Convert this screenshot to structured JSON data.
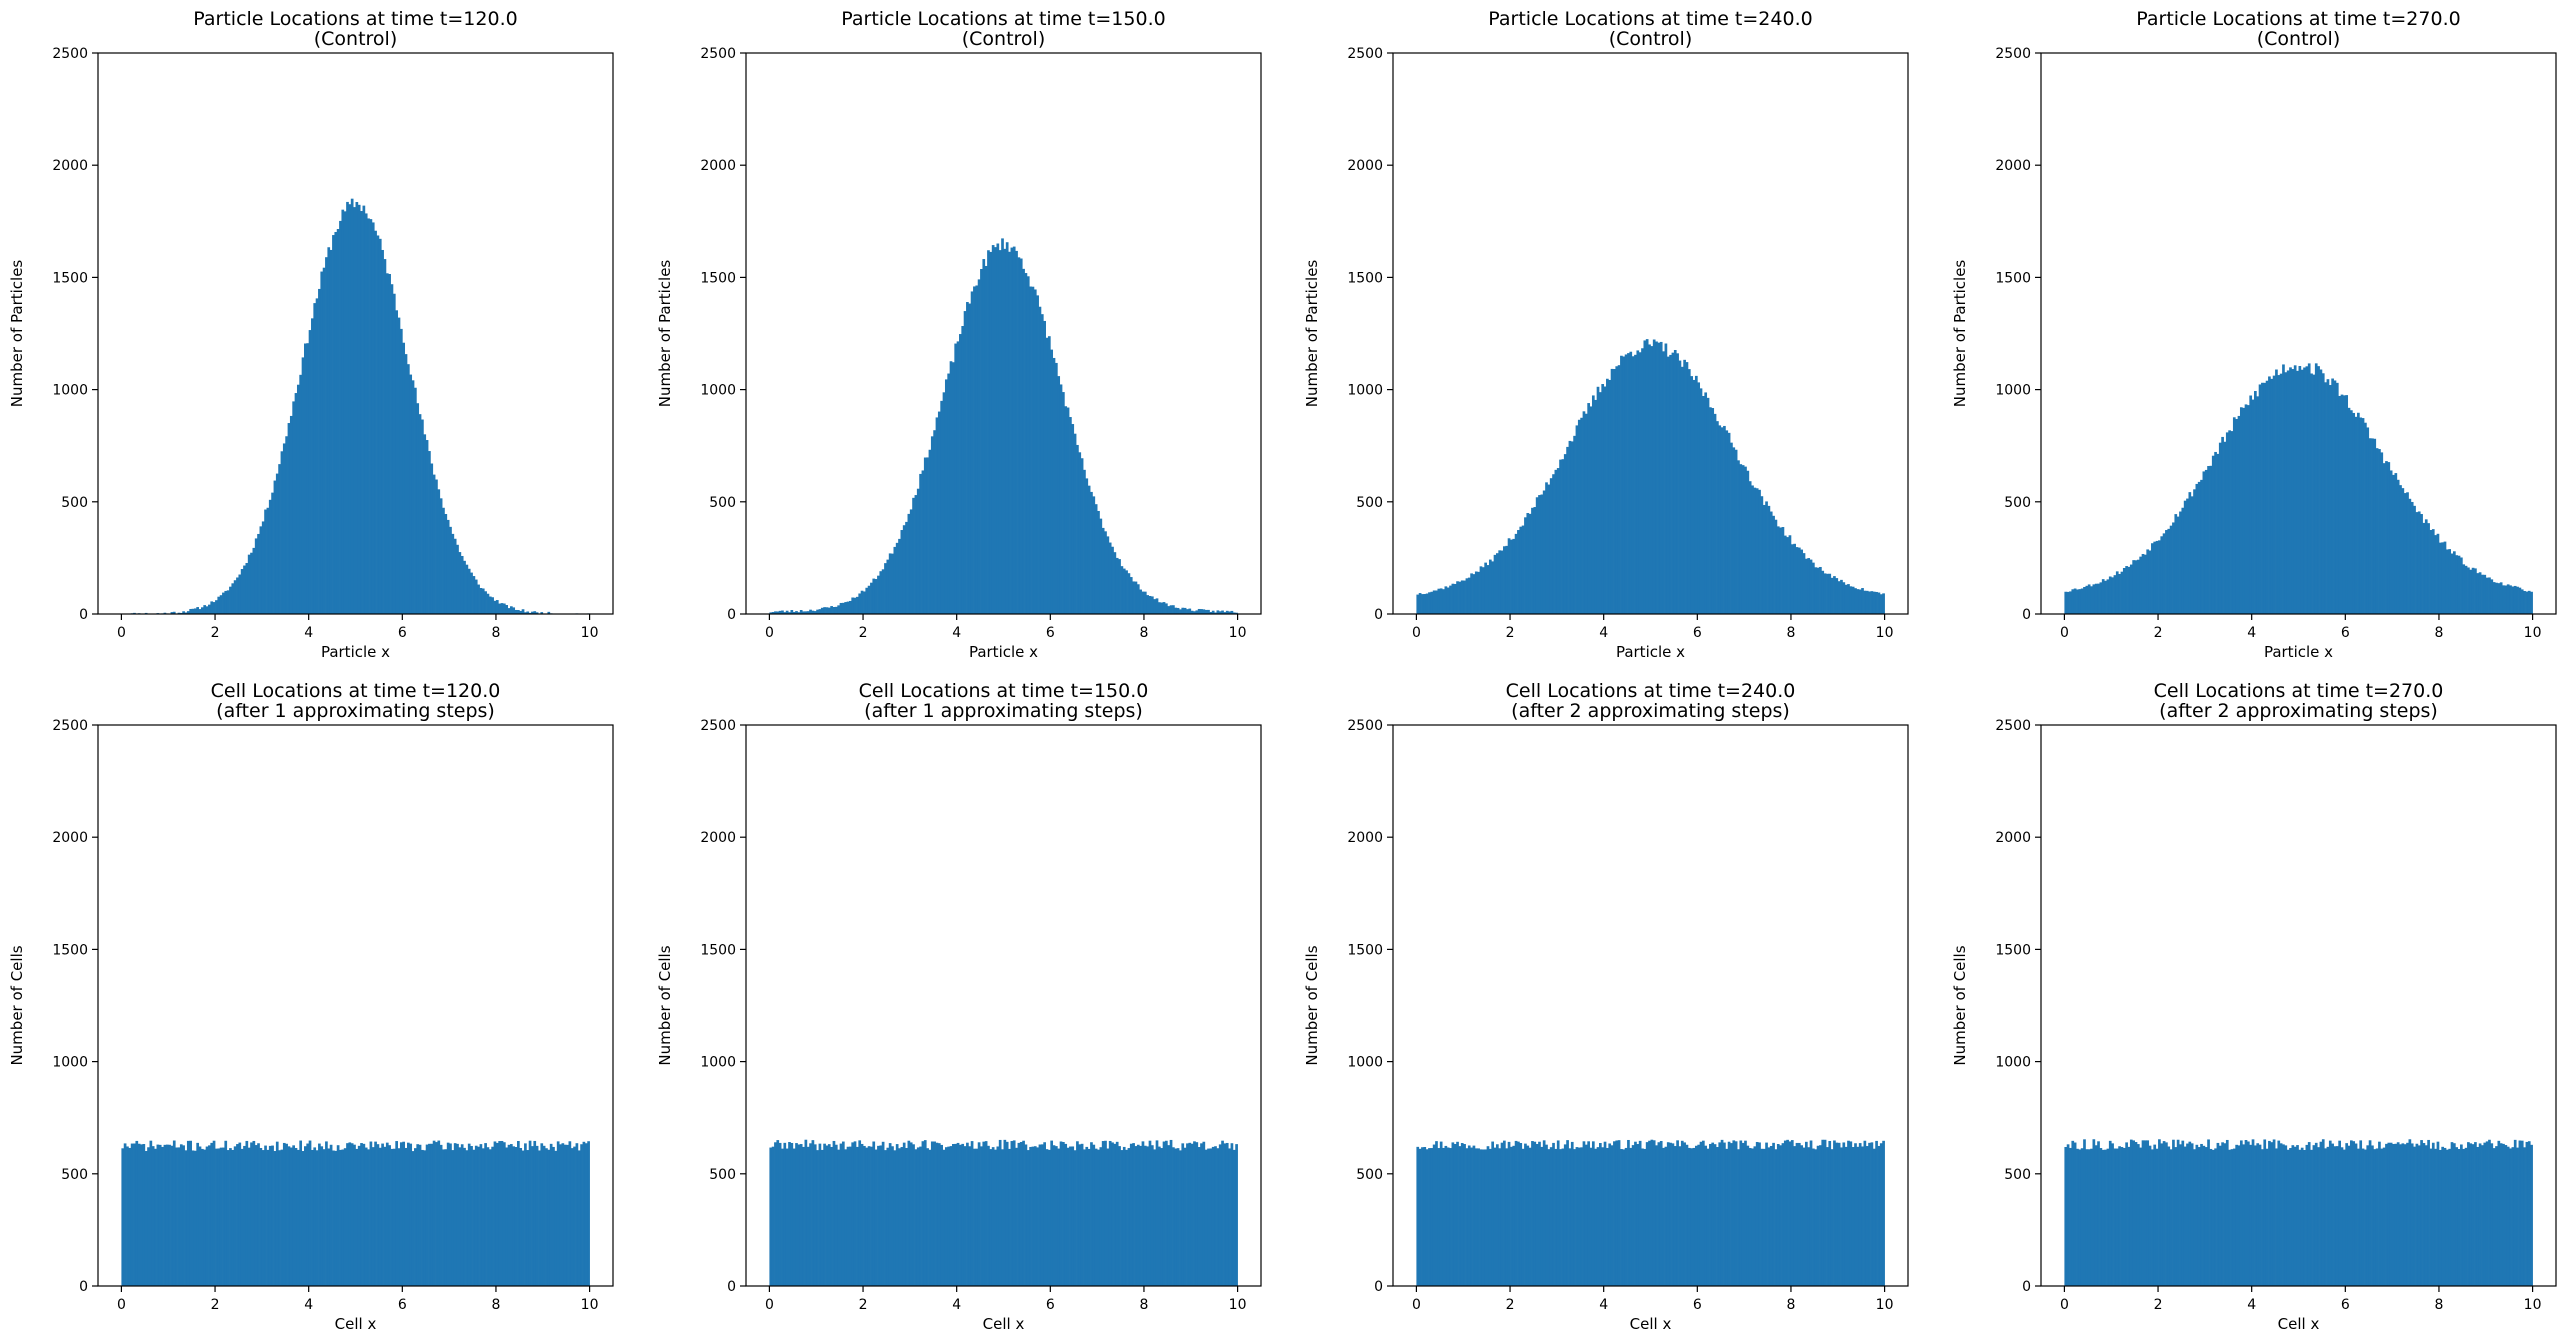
{
  "chart_data": [
    {
      "type": "bar",
      "title": [
        "Particle Locations at time t=120.0",
        "(Control)"
      ],
      "xlabel": "Particle x",
      "ylabel": "Number of Particles",
      "xlim": [
        -0.5,
        10.5
      ],
      "ylim": [
        0,
        2500
      ],
      "xticks": [
        0,
        2,
        4,
        6,
        8,
        10
      ],
      "yticks": [
        0,
        500,
        1000,
        1500,
        2000,
        2500
      ],
      "bins": 200,
      "series": [
        {
          "color": "#1f77b4",
          "distribution": "gaussian",
          "mean": 5.0,
          "sd": 1.15,
          "peak": 1830,
          "floor": 0,
          "jitter": 30,
          "seed": 11
        }
      ]
    },
    {
      "type": "bar",
      "title": [
        "Particle Locations at time t=150.0",
        "(Control)"
      ],
      "xlabel": "Particle x",
      "ylabel": "Number of Particles",
      "xlim": [
        -0.5,
        10.5
      ],
      "ylim": [
        0,
        2500
      ],
      "xticks": [
        0,
        2,
        4,
        6,
        8,
        10
      ],
      "yticks": [
        0,
        500,
        1000,
        1500,
        2000,
        2500
      ],
      "bins": 200,
      "series": [
        {
          "color": "#1f77b4",
          "distribution": "gaussian",
          "mean": 5.0,
          "sd": 1.25,
          "peak": 1650,
          "floor": 10,
          "jitter": 30,
          "seed": 23
        }
      ]
    },
    {
      "type": "bar",
      "title": [
        "Particle Locations at time t=240.0",
        "(Control)"
      ],
      "xlabel": "Particle x",
      "ylabel": "Number of Particles",
      "xlim": [
        -0.5,
        10.5
      ],
      "ylim": [
        0,
        2500
      ],
      "xticks": [
        0,
        2,
        4,
        6,
        8,
        10
      ],
      "yticks": [
        0,
        500,
        1000,
        1500,
        2000,
        2500
      ],
      "bins": 200,
      "series": [
        {
          "color": "#1f77b4",
          "distribution": "gaussian",
          "mean": 5.0,
          "sd": 1.75,
          "peak": 1200,
          "floor": 70,
          "jitter": 30,
          "seed": 37
        }
      ]
    },
    {
      "type": "bar",
      "title": [
        "Particle Locations at time t=270.0",
        "(Control)"
      ],
      "xlabel": "Particle x",
      "ylabel": "Number of Particles",
      "xlim": [
        -0.5,
        10.5
      ],
      "ylim": [
        0,
        2500
      ],
      "xticks": [
        0,
        2,
        4,
        6,
        8,
        10
      ],
      "yticks": [
        0,
        500,
        1000,
        1500,
        2000,
        2500
      ],
      "bins": 200,
      "series": [
        {
          "color": "#1f77b4",
          "distribution": "gaussian",
          "mean": 5.0,
          "sd": 1.8,
          "peak": 1110,
          "floor": 80,
          "jitter": 32,
          "seed": 53
        }
      ]
    },
    {
      "type": "bar",
      "title": [
        "Cell Locations at time t=120.0",
        "(after 1 approximating steps)"
      ],
      "xlabel": "Cell x",
      "ylabel": "Number of Cells",
      "xlim": [
        -0.5,
        10.5
      ],
      "ylim": [
        0,
        2500
      ],
      "xticks": [
        0,
        2,
        4,
        6,
        8,
        10
      ],
      "yticks": [
        0,
        500,
        1000,
        1500,
        2000,
        2500
      ],
      "bins": 200,
      "series": [
        {
          "color": "#1f77b4",
          "distribution": "uniform",
          "level": 625,
          "jitter": 24,
          "seed": 71
        }
      ]
    },
    {
      "type": "bar",
      "title": [
        "Cell Locations at time t=150.0",
        "(after 1 approximating steps)"
      ],
      "xlabel": "Cell x",
      "ylabel": "Number of Cells",
      "xlim": [
        -0.5,
        10.5
      ],
      "ylim": [
        0,
        2500
      ],
      "xticks": [
        0,
        2,
        4,
        6,
        8,
        10
      ],
      "yticks": [
        0,
        500,
        1000,
        1500,
        2000,
        2500
      ],
      "bins": 200,
      "series": [
        {
          "color": "#1f77b4",
          "distribution": "uniform",
          "level": 628,
          "jitter": 24,
          "seed": 89
        }
      ]
    },
    {
      "type": "bar",
      "title": [
        "Cell Locations at time t=240.0",
        "(after 2 approximating steps)"
      ],
      "xlabel": "Cell x",
      "ylabel": "Number of Cells",
      "xlim": [
        -0.5,
        10.5
      ],
      "ylim": [
        0,
        2500
      ],
      "xticks": [
        0,
        2,
        4,
        6,
        8,
        10
      ],
      "yticks": [
        0,
        500,
        1000,
        1500,
        2000,
        2500
      ],
      "bins": 200,
      "series": [
        {
          "color": "#1f77b4",
          "distribution": "uniform",
          "level": 630,
          "jitter": 22,
          "seed": 97
        }
      ]
    },
    {
      "type": "bar",
      "title": [
        "Cell Locations at time t=270.0",
        "(after 2 approximating steps)"
      ],
      "xlabel": "Cell x",
      "ylabel": "Number of Cells",
      "xlim": [
        -0.5,
        10.5
      ],
      "ylim": [
        0,
        2500
      ],
      "xticks": [
        0,
        2,
        4,
        6,
        8,
        10
      ],
      "yticks": [
        0,
        500,
        1000,
        1500,
        2000,
        2500
      ],
      "bins": 200,
      "series": [
        {
          "color": "#1f77b4",
          "distribution": "uniform",
          "level": 630,
          "jitter": 24,
          "seed": 113
        }
      ]
    }
  ]
}
